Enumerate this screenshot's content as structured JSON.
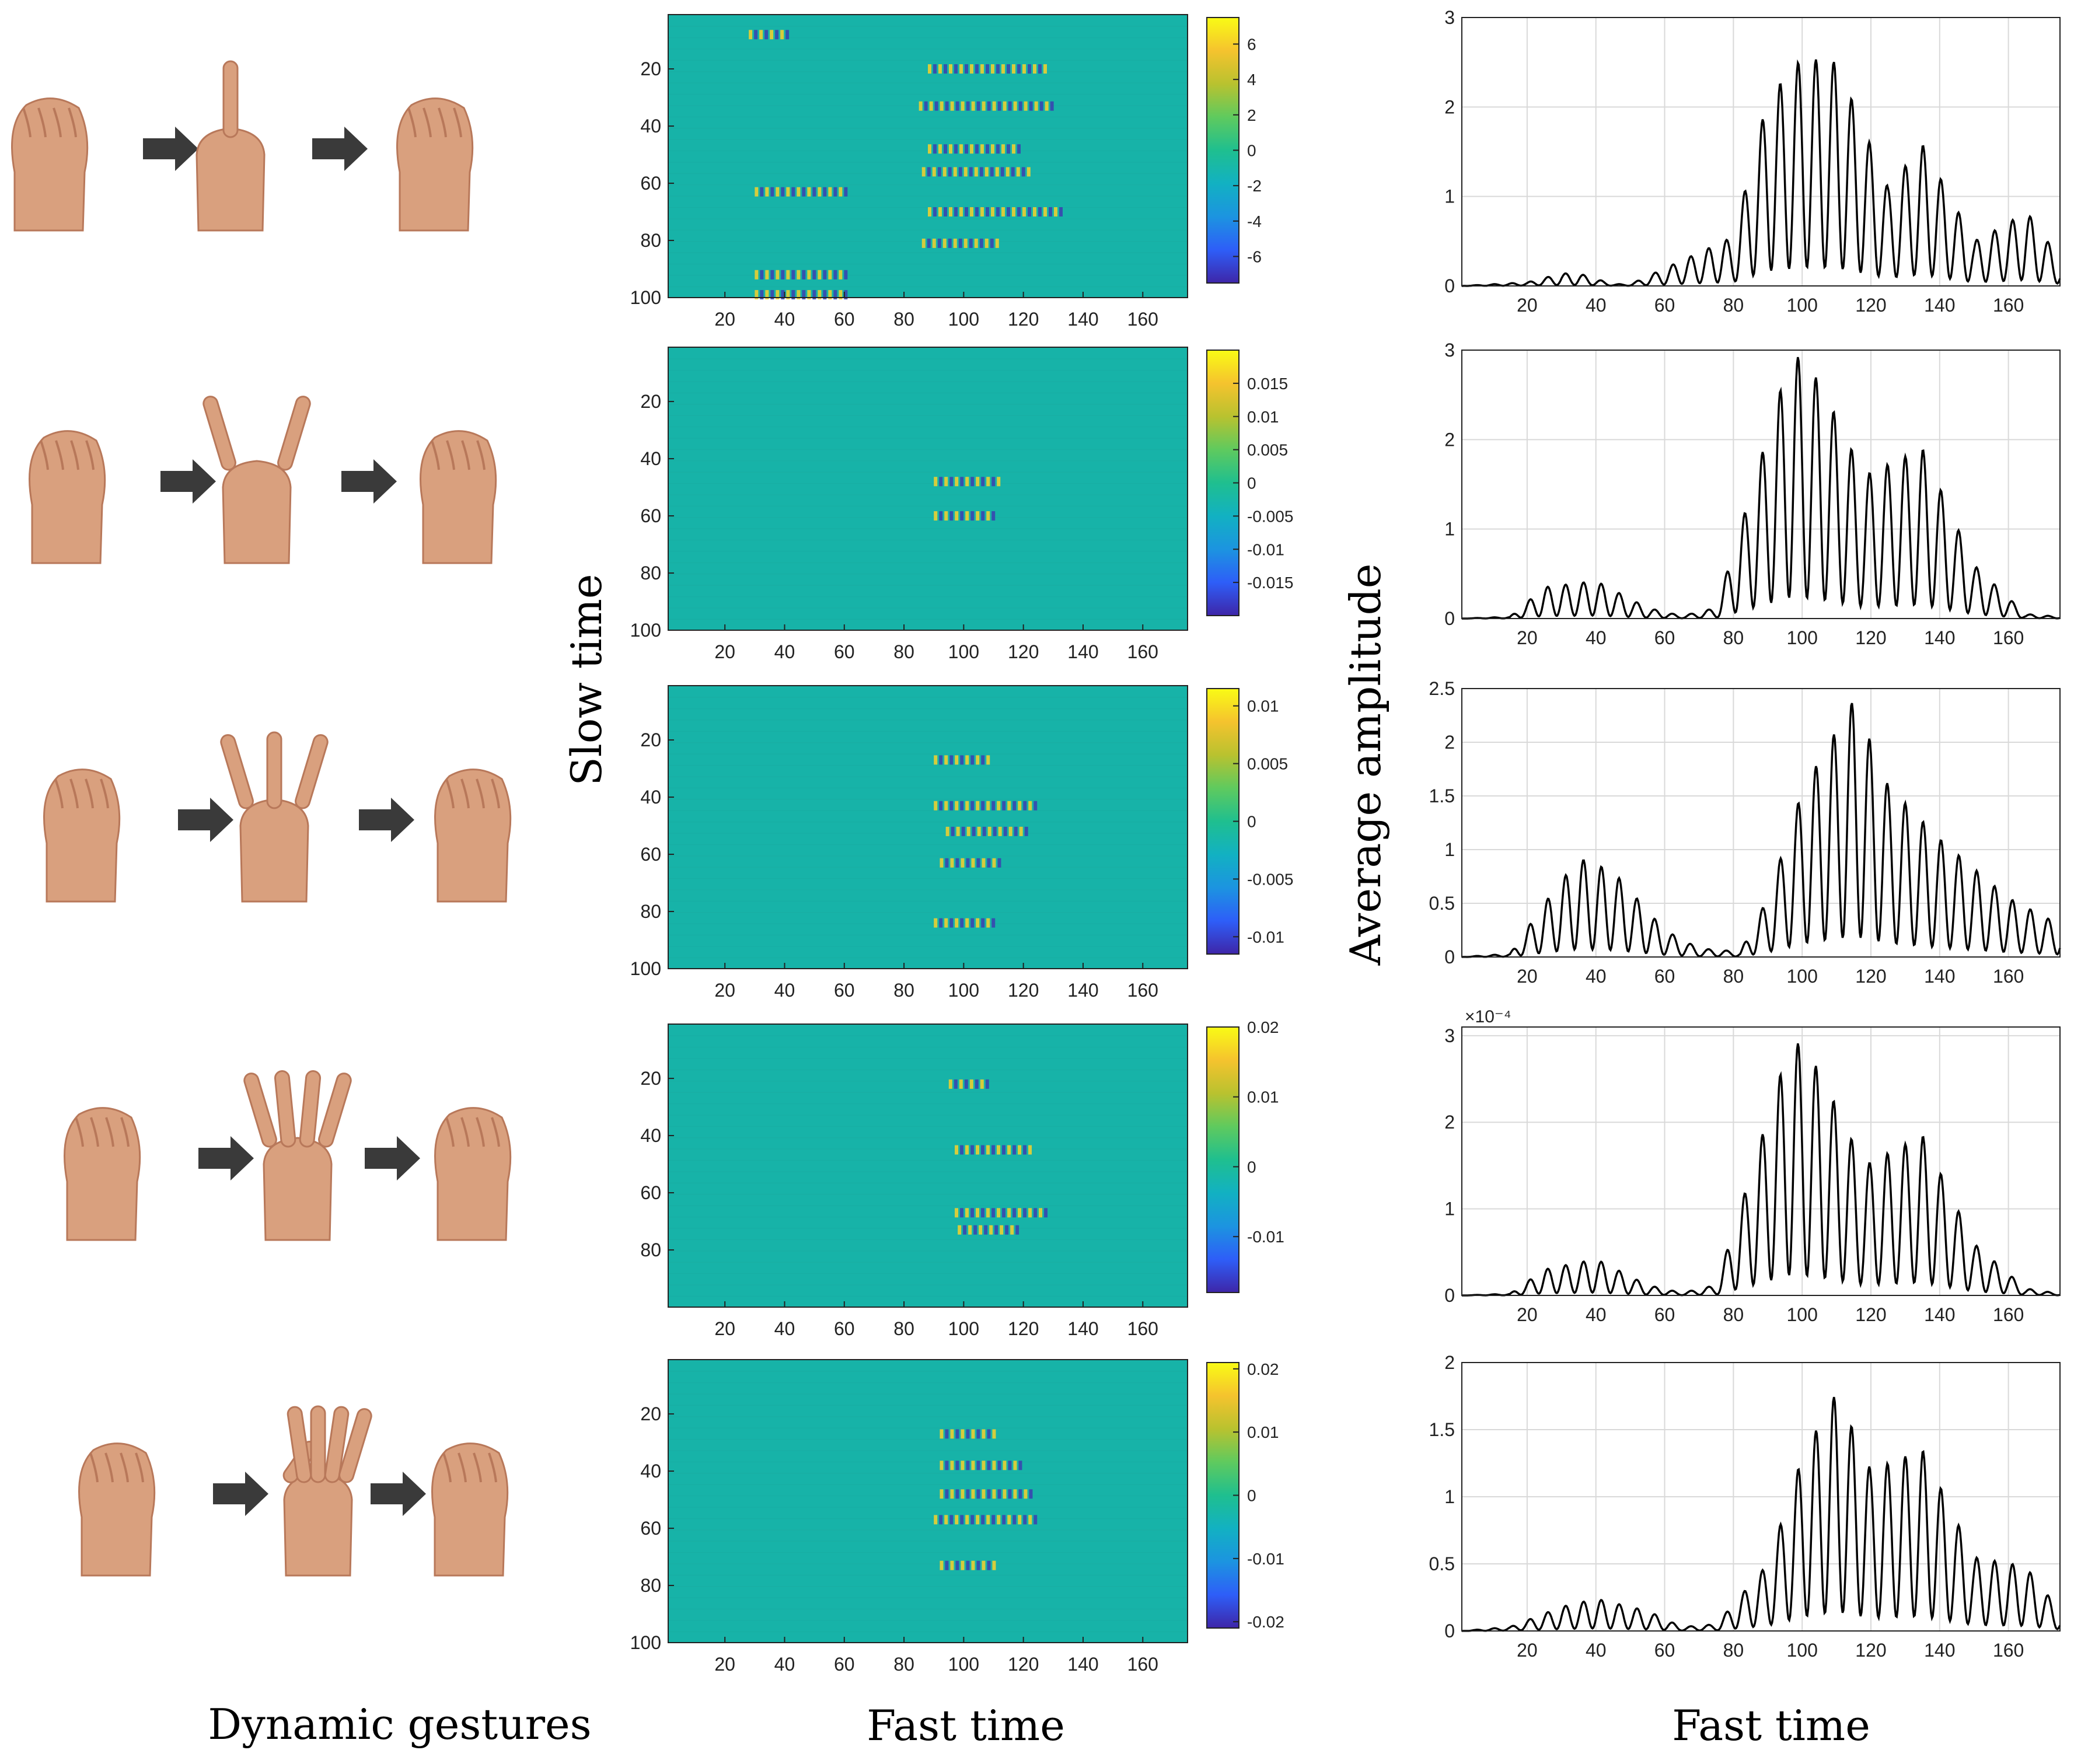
{
  "labels": {
    "left": "Dynamic gestures",
    "middle_x": "Fast time",
    "middle_y": "Slow time",
    "right_x": "Fast time",
    "right_y": "Average amplitude"
  },
  "colors": {
    "background": "#ffffff",
    "arrow": "#3a3a3a",
    "skin": "#d9a07e",
    "skin_shadow": "#b8785a",
    "heatmap_base": "#17b3a8",
    "line": "#000000",
    "grid": "#d9d9d9",
    "axis": "#000000",
    "colormap": [
      "#3e26a8",
      "#2e5ef8",
      "#1c94e0",
      "#12b1c2",
      "#1fbf8f",
      "#5fca5e",
      "#b9c22f",
      "#f5c32e",
      "#f9fb15"
    ]
  },
  "gestures": [
    {
      "name": "one-finger",
      "fingers": 1,
      "icon": "fist-to-one-finger-icon"
    },
    {
      "name": "two-fingers",
      "fingers": 2,
      "icon": "fist-to-two-fingers-icon"
    },
    {
      "name": "three-fingers",
      "fingers": 3,
      "icon": "fist-to-three-fingers-icon"
    },
    {
      "name": "four-fingers",
      "fingers": 4,
      "icon": "fist-to-four-fingers-icon"
    },
    {
      "name": "five-fingers",
      "fingers": 5,
      "icon": "fist-to-open-palm-icon"
    }
  ],
  "chart_data": [
    {
      "type": "heatmap",
      "row": 1,
      "xlabel": "Fast time",
      "ylabel": "Slow time",
      "x_ticks": [
        "20",
        "40",
        "60",
        "80",
        "100",
        "120",
        "140",
        "160"
      ],
      "x_range": [
        1,
        175
      ],
      "y_ticks": [
        "20",
        "40",
        "60",
        "80",
        "100"
      ],
      "y_range": [
        1,
        100
      ],
      "colorbar_ticks": [
        "6",
        "4",
        "2",
        "0",
        "-2",
        "-4",
        "-6"
      ],
      "colorbar_range": [
        -7.5,
        7.5
      ],
      "bands": [
        [
          8,
          28,
          42
        ],
        [
          20,
          88,
          128
        ],
        [
          33,
          85,
          130
        ],
        [
          48,
          88,
          118
        ],
        [
          56,
          86,
          122
        ],
        [
          63,
          30,
          60
        ],
        [
          70,
          88,
          133
        ],
        [
          81,
          86,
          112
        ],
        [
          92,
          30,
          60
        ],
        [
          99,
          30,
          60
        ]
      ]
    },
    {
      "type": "heatmap",
      "row": 2,
      "xlabel": "Fast time",
      "ylabel": "Slow time",
      "x_ticks": [
        "20",
        "40",
        "60",
        "80",
        "100",
        "120",
        "140",
        "160"
      ],
      "x_range": [
        1,
        175
      ],
      "y_ticks": [
        "20",
        "40",
        "60",
        "80",
        "100"
      ],
      "y_range": [
        1,
        100
      ],
      "colorbar_ticks": [
        "0.015",
        "0.01",
        "0.005",
        "0",
        "-0.005",
        "-0.01",
        "-0.015"
      ],
      "colorbar_range": [
        -0.02,
        0.02
      ],
      "bands": [
        [
          48,
          90,
          112
        ],
        [
          60,
          90,
          110
        ]
      ]
    },
    {
      "type": "heatmap",
      "row": 3,
      "xlabel": "Fast time",
      "ylabel": "Slow time",
      "x_ticks": [
        "20",
        "40",
        "60",
        "80",
        "100",
        "120",
        "140",
        "160"
      ],
      "x_range": [
        1,
        175
      ],
      "y_ticks": [
        "20",
        "40",
        "60",
        "80",
        "100"
      ],
      "y_range": [
        1,
        100
      ],
      "colorbar_ticks": [
        "0.01",
        "0.005",
        "0",
        "-0.005",
        "-0.01"
      ],
      "colorbar_range": [
        -0.0115,
        0.0115
      ],
      "bands": [
        [
          27,
          90,
          108
        ],
        [
          43,
          90,
          124
        ],
        [
          52,
          94,
          122
        ],
        [
          63,
          92,
          112
        ],
        [
          84,
          90,
          110
        ]
      ]
    },
    {
      "type": "heatmap",
      "row": 4,
      "xlabel": "Fast time",
      "ylabel": "Slow time",
      "x_ticks": [
        "20",
        "40",
        "60",
        "80",
        "100",
        "120",
        "140",
        "160"
      ],
      "x_range": [
        1,
        175
      ],
      "y_ticks": [
        "20",
        "40",
        "60",
        "80"
      ],
      "y_range": [
        1,
        100
      ],
      "colorbar_ticks": [
        "0.02",
        "0.01",
        "0",
        "-0.01"
      ],
      "colorbar_range": [
        -0.018,
        0.02
      ],
      "bands": [
        [
          22,
          95,
          108
        ],
        [
          45,
          97,
          122
        ],
        [
          67,
          97,
          128
        ],
        [
          73,
          98,
          118
        ]
      ]
    },
    {
      "type": "heatmap",
      "row": 5,
      "xlabel": "Fast time",
      "ylabel": "Slow time",
      "x_ticks": [
        "20",
        "40",
        "60",
        "80",
        "100",
        "120",
        "140",
        "160"
      ],
      "x_range": [
        1,
        175
      ],
      "y_ticks": [
        "20",
        "40",
        "60",
        "80",
        "100"
      ],
      "y_range": [
        1,
        100
      ],
      "colorbar_ticks": [
        "0.02",
        "0.01",
        "0",
        "-0.01",
        "-0.02"
      ],
      "colorbar_range": [
        -0.021,
        0.021
      ],
      "bands": [
        [
          27,
          92,
          110
        ],
        [
          38,
          92,
          120
        ],
        [
          48,
          92,
          122
        ],
        [
          57,
          90,
          124
        ],
        [
          73,
          92,
          110
        ]
      ]
    },
    {
      "type": "line",
      "row": 1,
      "xlabel": "Fast time",
      "ylabel": "Average amplitude",
      "x_ticks": [
        "20",
        "40",
        "60",
        "80",
        "100",
        "120",
        "140",
        "160"
      ],
      "x_range": [
        1,
        175
      ],
      "y_ticks": [
        "0",
        "1",
        "2",
        "3"
      ],
      "y_range": [
        0,
        3
      ],
      "scale_label": "",
      "x": [
        1,
        20,
        30,
        35,
        45,
        50,
        80,
        90,
        100,
        110,
        125,
        135,
        150,
        160,
        165,
        175
      ],
      "envelope": [
        0,
        0.04,
        0.14,
        0.14,
        0.02,
        0.02,
        0.55,
        2.1,
        2.55,
        2.5,
        1.1,
        1.58,
        0.5,
        0.7,
        0.85,
        0.3
      ]
    },
    {
      "type": "line",
      "row": 2,
      "xlabel": "Fast time",
      "ylabel": "Average amplitude",
      "x_ticks": [
        "20",
        "40",
        "60",
        "80",
        "100",
        "120",
        "140",
        "160"
      ],
      "x_range": [
        1,
        175
      ],
      "y_ticks": [
        "0",
        "1",
        "2",
        "3"
      ],
      "y_range": [
        0,
        3
      ],
      "scale_label": "",
      "x": [
        1,
        15,
        25,
        40,
        55,
        65,
        75,
        85,
        97,
        105,
        118,
        135,
        150,
        165,
        175
      ],
      "envelope": [
        0,
        0.02,
        0.35,
        0.42,
        0.12,
        0.03,
        0.12,
        1.4,
        3.0,
        2.65,
        1.6,
        1.9,
        0.6,
        0.05,
        0.02
      ]
    },
    {
      "type": "line",
      "row": 3,
      "xlabel": "Fast time",
      "ylabel": "Average amplitude",
      "x_ticks": [
        "20",
        "40",
        "60",
        "80",
        "100",
        "120",
        "140",
        "160"
      ],
      "x_range": [
        1,
        175
      ],
      "y_ticks": [
        "0",
        "0.5",
        "1",
        "1.5",
        "2",
        "2.5"
      ],
      "y_range": [
        0,
        2.5
      ],
      "scale_label": "",
      "x": [
        1,
        15,
        25,
        35,
        45,
        60,
        70,
        82,
        90,
        100,
        115,
        125,
        140,
        160,
        175
      ],
      "envelope": [
        0,
        0.03,
        0.5,
        0.92,
        0.8,
        0.25,
        0.08,
        0.05,
        0.55,
        1.55,
        2.4,
        1.6,
        1.1,
        0.55,
        0.3
      ]
    },
    {
      "type": "line",
      "row": 4,
      "xlabel": "Fast time",
      "ylabel": "Average amplitude",
      "x_ticks": [
        "20",
        "40",
        "60",
        "80",
        "100",
        "120",
        "140",
        "160"
      ],
      "x_range": [
        1,
        175
      ],
      "y_ticks": [
        "0",
        "1",
        "2",
        "3"
      ],
      "y_range": [
        0,
        3.1
      ],
      "scale_label": "×10⁻⁴",
      "x": [
        1,
        15,
        25,
        40,
        55,
        65,
        75,
        85,
        97,
        105,
        118,
        135,
        150,
        165,
        175
      ],
      "envelope": [
        0,
        0.02,
        0.3,
        0.42,
        0.12,
        0.03,
        0.12,
        1.4,
        3.0,
        2.6,
        1.5,
        1.85,
        0.6,
        0.08,
        0.02
      ]
    },
    {
      "type": "line",
      "row": 5,
      "xlabel": "Fast time",
      "ylabel": "Average amplitude",
      "x_ticks": [
        "20",
        "40",
        "60",
        "80",
        "100",
        "120",
        "140",
        "160"
      ],
      "x_range": [
        1,
        175
      ],
      "y_ticks": [
        "0",
        "0.5",
        "1",
        "1.5",
        "2"
      ],
      "y_range": [
        0,
        2
      ],
      "scale_label": "",
      "x": [
        1,
        15,
        30,
        40,
        55,
        65,
        75,
        90,
        100,
        110,
        120,
        135,
        150,
        165,
        175
      ],
      "envelope": [
        0,
        0.03,
        0.18,
        0.24,
        0.15,
        0.03,
        0.05,
        0.5,
        1.3,
        1.78,
        1.2,
        1.35,
        0.55,
        0.48,
        0.15
      ]
    }
  ]
}
